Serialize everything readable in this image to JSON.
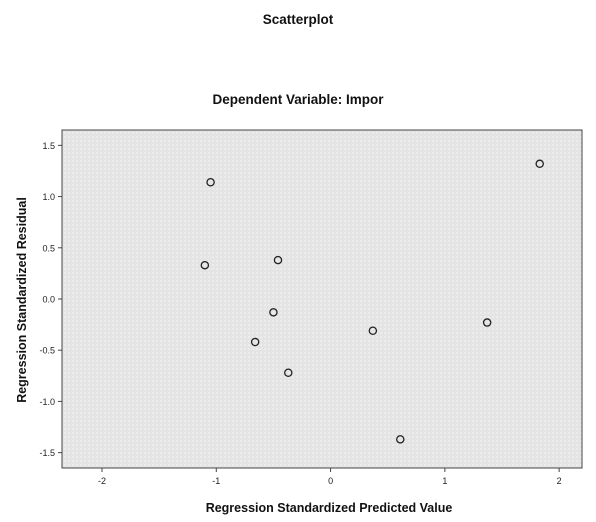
{
  "chart_data": {
    "type": "scatter",
    "title": "Scatterplot",
    "subtitle": "Dependent Variable: Impor",
    "xlabel": "Regression Standardized Predicted Value",
    "ylabel": "Regression Standardized Residual",
    "xlim": [
      -2.35,
      2.2
    ],
    "ylim": [
      -1.65,
      1.65
    ],
    "xticks": [
      "-2",
      "-1",
      "0",
      "1",
      "2"
    ],
    "yticks": [
      "1.5",
      "1.0",
      "0.5",
      "0.0",
      "-0.5",
      "-1.0",
      "-1.5"
    ],
    "grid": false,
    "points": [
      {
        "x": -1.05,
        "y": 1.14
      },
      {
        "x": 1.83,
        "y": 1.32
      },
      {
        "x": -1.1,
        "y": 0.33
      },
      {
        "x": -0.46,
        "y": 0.38
      },
      {
        "x": -0.5,
        "y": -0.13
      },
      {
        "x": -0.66,
        "y": -0.42
      },
      {
        "x": -0.37,
        "y": -0.72
      },
      {
        "x": 0.37,
        "y": -0.31
      },
      {
        "x": 1.37,
        "y": -0.23
      },
      {
        "x": 0.61,
        "y": -1.37
      }
    ],
    "colors": {
      "plot_bg": "#e7e7e7",
      "marker": "#222222"
    }
  }
}
